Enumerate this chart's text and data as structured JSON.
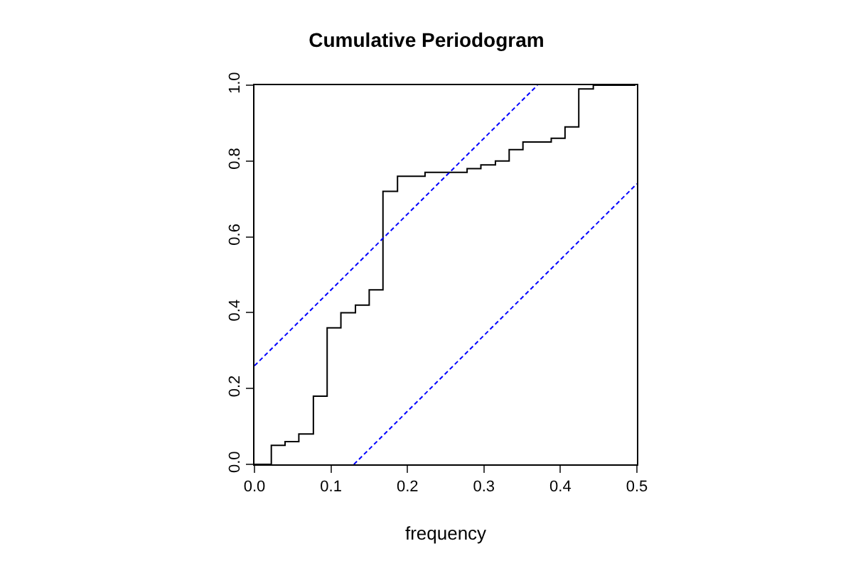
{
  "chart_data": {
    "type": "step",
    "title": "Cumulative Periodogram",
    "xlabel": "frequency",
    "xlim": [
      0,
      0.5
    ],
    "ylim": [
      0,
      1
    ],
    "xticks": [
      {
        "value": 0,
        "label": "0.0"
      },
      0.1,
      0.2,
      0.3,
      0.4,
      0.5
    ],
    "yticks": [
      {
        "value": 0,
        "label": "0.0"
      },
      0.2,
      0.4,
      0.6,
      0.8,
      {
        "value": 1,
        "label": "1.0"
      }
    ],
    "series": [
      {
        "color": "#000000",
        "x": [
          0,
          0.022,
          0.04,
          0.058,
          0.077,
          0.095,
          0.113,
          0.132,
          0.15,
          0.168,
          0.187,
          0.205,
          0.223,
          0.241,
          0.26,
          0.278,
          0.296,
          0.315,
          0.333,
          0.351,
          0.37,
          0.388,
          0.406,
          0.424,
          0.443,
          0.461,
          0.479,
          0.498
        ],
        "values": [
          0,
          0.05,
          0.06,
          0.08,
          0.18,
          0.36,
          0.4,
          0.42,
          0.46,
          0.72,
          0.76,
          0.76,
          0.77,
          0.77,
          0.77,
          0.78,
          0.79,
          0.8,
          0.83,
          0.85,
          0.85,
          0.86,
          0.89,
          0.99,
          1.0,
          1.0,
          1.0,
          1.0
        ]
      },
      {
        "type": "line",
        "color": "#0000ff",
        "line_style": "dashed",
        "x": [
          0,
          0.37
        ],
        "values": [
          0.26,
          1
        ]
      },
      {
        "type": "line",
        "color": "#0000ff",
        "line_style": "dashed",
        "x": [
          0.13,
          0.5
        ],
        "values": [
          0,
          0.74
        ]
      }
    ]
  }
}
